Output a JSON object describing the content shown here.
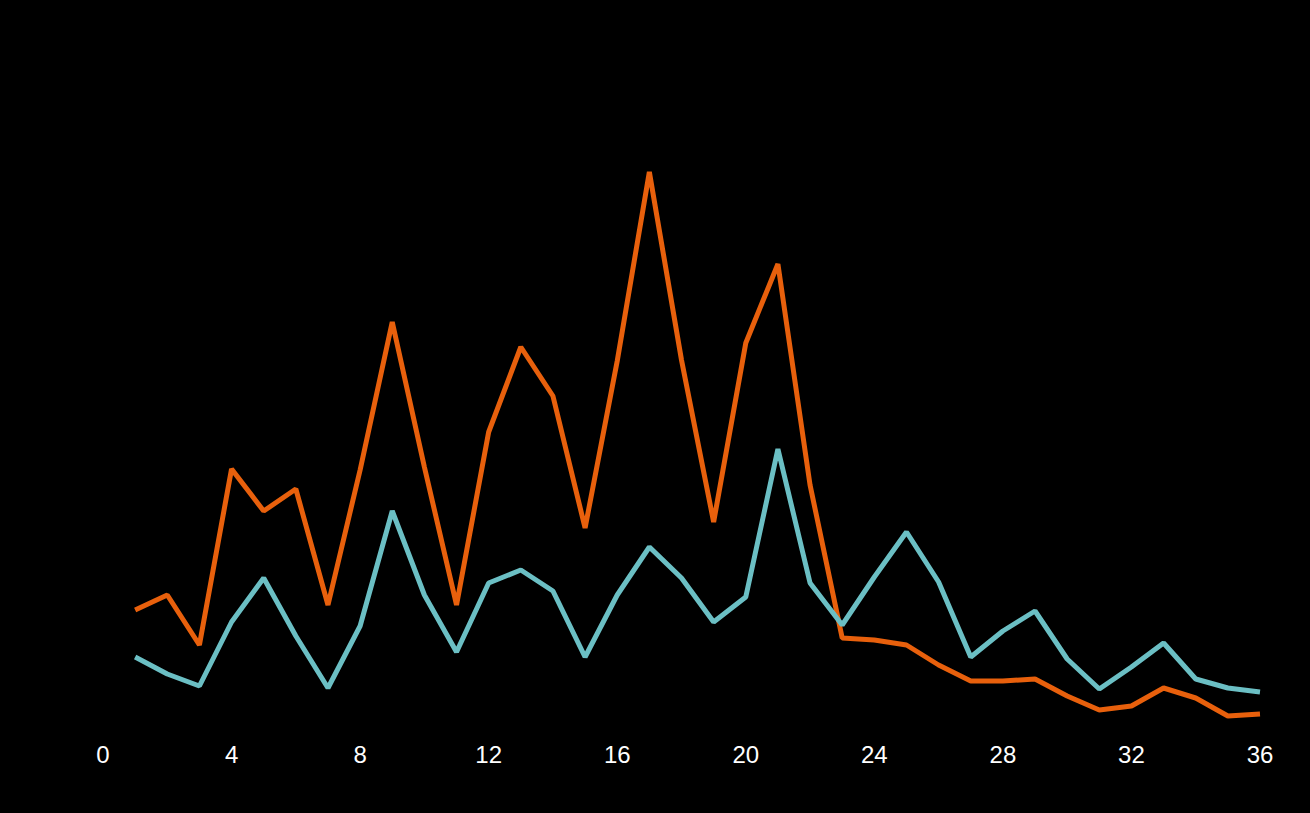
{
  "chart_data": {
    "type": "line",
    "x": [
      1,
      2,
      3,
      4,
      5,
      6,
      7,
      8,
      9,
      10,
      11,
      12,
      13,
      14,
      15,
      16,
      17,
      18,
      19,
      20,
      21,
      22,
      23,
      24,
      25,
      26,
      27,
      28,
      29,
      30,
      31,
      32,
      33,
      34,
      35,
      36
    ],
    "series": [
      {
        "color": "#e8600c",
        "values": [
          12.0,
          13.5,
          8.5,
          26.1,
          21.9,
          24.1,
          12.5,
          26.0,
          40.8,
          26.3,
          12.5,
          29.8,
          38.3,
          33.4,
          20.2,
          36.9,
          55.8,
          37.0,
          20.8,
          38.7,
          46.6,
          24.5,
          9.2,
          9.0,
          8.5,
          6.5,
          4.9,
          4.9,
          5.1,
          3.4,
          2.0,
          2.4,
          4.2,
          3.2,
          1.4,
          1.6
        ]
      },
      {
        "color": "#6bbfc4",
        "values": [
          7.3,
          5.6,
          4.4,
          10.8,
          15.2,
          9.4,
          4.2,
          10.4,
          21.9,
          13.5,
          7.8,
          14.7,
          16.0,
          13.9,
          7.3,
          13.5,
          18.3,
          15.2,
          10.8,
          13.3,
          28.1,
          14.7,
          10.5,
          15.3,
          19.8,
          14.8,
          7.3,
          9.9,
          11.9,
          7.1,
          4.1,
          6.3,
          8.7,
          5.1,
          4.2,
          3.8
        ]
      }
    ],
    "xlim": [
      0,
      36
    ],
    "xticks": [
      0,
      4,
      8,
      12,
      16,
      20,
      24,
      28,
      32,
      36
    ],
    "ylim": [
      0,
      60
    ],
    "grid": false,
    "tick_labels": "x"
  }
}
